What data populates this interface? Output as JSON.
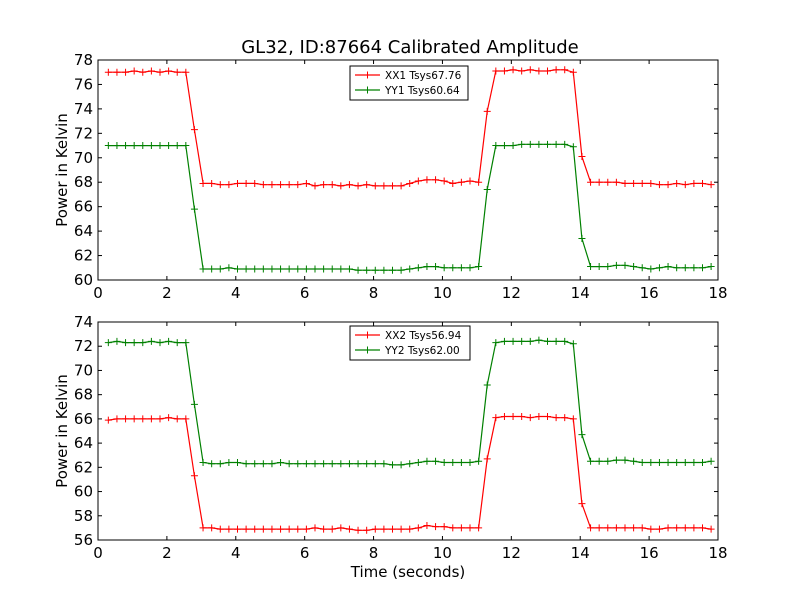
{
  "title": "GL32, ID:87664 Calibrated Amplitude",
  "chart_data": [
    {
      "type": "line",
      "ylabel": "Power in Kelvin",
      "xlabel": "",
      "xlim": [
        0,
        18
      ],
      "ylim": [
        60,
        78
      ],
      "xticks": [
        0,
        2,
        4,
        6,
        8,
        10,
        12,
        14,
        16,
        18
      ],
      "yticks": [
        60,
        62,
        64,
        66,
        68,
        70,
        72,
        74,
        76,
        78
      ],
      "x": [
        0.3,
        0.55,
        0.8,
        1.05,
        1.3,
        1.55,
        1.8,
        2.05,
        2.3,
        2.55,
        2.8,
        3.05,
        3.3,
        3.55,
        3.8,
        4.05,
        4.3,
        4.55,
        4.8,
        5.05,
        5.3,
        5.55,
        5.8,
        6.05,
        6.3,
        6.55,
        6.8,
        7.05,
        7.3,
        7.55,
        7.8,
        8.05,
        8.3,
        8.55,
        8.8,
        9.05,
        9.3,
        9.55,
        9.8,
        10.05,
        10.3,
        10.55,
        10.8,
        11.05,
        11.3,
        11.55,
        11.8,
        12.05,
        12.3,
        12.55,
        12.8,
        13.05,
        13.3,
        13.55,
        13.8,
        14.05,
        14.3,
        14.55,
        14.8,
        15.05,
        15.3,
        15.55,
        15.8,
        16.05,
        16.3,
        16.55,
        16.8,
        17.05,
        17.3,
        17.55,
        17.8
      ],
      "legend": "top-center",
      "grid": false,
      "series": [
        {
          "name": "XX1 Tsys67.76",
          "color": "#ff0000",
          "values": [
            77.0,
            77.0,
            77.0,
            77.1,
            77.0,
            77.1,
            77.0,
            77.1,
            77.0,
            77.0,
            72.3,
            67.9,
            67.9,
            67.8,
            67.8,
            67.9,
            67.9,
            67.9,
            67.8,
            67.8,
            67.8,
            67.8,
            67.8,
            67.9,
            67.7,
            67.8,
            67.8,
            67.7,
            67.8,
            67.7,
            67.8,
            67.7,
            67.7,
            67.7,
            67.7,
            67.9,
            68.1,
            68.2,
            68.2,
            68.1,
            67.9,
            68.0,
            68.1,
            68.0,
            73.8,
            77.1,
            77.1,
            77.2,
            77.1,
            77.2,
            77.1,
            77.1,
            77.2,
            77.2,
            77.0,
            70.1,
            68.0,
            68.0,
            68.0,
            68.0,
            67.9,
            67.9,
            67.9,
            67.9,
            67.8,
            67.8,
            67.9,
            67.8,
            67.9,
            67.9,
            67.8
          ]
        },
        {
          "name": "YY1 Tsys60.64",
          "color": "#008000",
          "values": [
            71.0,
            71.0,
            71.0,
            71.0,
            71.0,
            71.0,
            71.0,
            71.0,
            71.0,
            71.0,
            65.8,
            60.9,
            60.9,
            60.9,
            61.0,
            60.9,
            60.9,
            60.9,
            60.9,
            60.9,
            60.9,
            60.9,
            60.9,
            60.9,
            60.9,
            60.9,
            60.9,
            60.9,
            60.9,
            60.8,
            60.8,
            60.8,
            60.8,
            60.8,
            60.8,
            60.9,
            61.0,
            61.1,
            61.1,
            61.0,
            61.0,
            61.0,
            61.0,
            61.1,
            67.4,
            71.0,
            71.0,
            71.0,
            71.1,
            71.1,
            71.1,
            71.1,
            71.1,
            71.1,
            70.9,
            63.4,
            61.1,
            61.1,
            61.1,
            61.2,
            61.2,
            61.1,
            61.0,
            60.9,
            61.0,
            61.1,
            61.0,
            61.0,
            61.0,
            61.0,
            61.1
          ]
        }
      ]
    },
    {
      "type": "line",
      "ylabel": "Power in Kelvin",
      "xlabel": "Time (seconds)",
      "xlim": [
        0,
        18
      ],
      "ylim": [
        56,
        74
      ],
      "xticks": [
        0,
        2,
        4,
        6,
        8,
        10,
        12,
        14,
        16,
        18
      ],
      "yticks": [
        56,
        58,
        60,
        62,
        64,
        66,
        68,
        70,
        72,
        74
      ],
      "x": [
        0.3,
        0.55,
        0.8,
        1.05,
        1.3,
        1.55,
        1.8,
        2.05,
        2.3,
        2.55,
        2.8,
        3.05,
        3.3,
        3.55,
        3.8,
        4.05,
        4.3,
        4.55,
        4.8,
        5.05,
        5.3,
        5.55,
        5.8,
        6.05,
        6.3,
        6.55,
        6.8,
        7.05,
        7.3,
        7.55,
        7.8,
        8.05,
        8.3,
        8.55,
        8.8,
        9.05,
        9.3,
        9.55,
        9.8,
        10.05,
        10.3,
        10.55,
        10.8,
        11.05,
        11.3,
        11.55,
        11.8,
        12.05,
        12.3,
        12.55,
        12.8,
        13.05,
        13.3,
        13.55,
        13.8,
        14.05,
        14.3,
        14.55,
        14.8,
        15.05,
        15.3,
        15.55,
        15.8,
        16.05,
        16.3,
        16.55,
        16.8,
        17.05,
        17.3,
        17.55,
        17.8
      ],
      "legend": "top-center",
      "grid": false,
      "series": [
        {
          "name": "XX2 Tsys56.94",
          "color": "#ff0000",
          "values": [
            65.9,
            66.0,
            66.0,
            66.0,
            66.0,
            66.0,
            66.0,
            66.1,
            66.0,
            66.0,
            61.3,
            57.0,
            57.0,
            56.9,
            56.9,
            56.9,
            56.9,
            56.9,
            56.9,
            56.9,
            56.9,
            56.9,
            56.9,
            56.9,
            57.0,
            56.9,
            56.9,
            57.0,
            56.9,
            56.8,
            56.8,
            56.9,
            56.9,
            56.9,
            56.9,
            56.9,
            57.0,
            57.2,
            57.1,
            57.1,
            57.0,
            57.0,
            57.0,
            57.0,
            62.7,
            66.1,
            66.2,
            66.2,
            66.2,
            66.1,
            66.2,
            66.2,
            66.1,
            66.1,
            66.0,
            59.0,
            57.0,
            57.0,
            57.0,
            57.0,
            57.0,
            57.0,
            57.0,
            56.9,
            56.9,
            57.0,
            57.0,
            57.0,
            57.0,
            57.0,
            56.9
          ]
        },
        {
          "name": "YY2 Tsys62.00",
          "color": "#008000",
          "values": [
            72.3,
            72.4,
            72.3,
            72.3,
            72.3,
            72.4,
            72.3,
            72.4,
            72.3,
            72.3,
            67.2,
            62.4,
            62.3,
            62.3,
            62.4,
            62.4,
            62.3,
            62.3,
            62.3,
            62.3,
            62.4,
            62.3,
            62.3,
            62.3,
            62.3,
            62.3,
            62.3,
            62.3,
            62.3,
            62.3,
            62.3,
            62.3,
            62.3,
            62.2,
            62.2,
            62.3,
            62.4,
            62.5,
            62.5,
            62.4,
            62.4,
            62.4,
            62.4,
            62.5,
            68.8,
            72.3,
            72.4,
            72.4,
            72.4,
            72.4,
            72.5,
            72.4,
            72.4,
            72.4,
            72.2,
            64.7,
            62.5,
            62.5,
            62.5,
            62.6,
            62.6,
            62.5,
            62.4,
            62.4,
            62.4,
            62.4,
            62.4,
            62.4,
            62.4,
            62.4,
            62.5
          ]
        }
      ]
    }
  ]
}
